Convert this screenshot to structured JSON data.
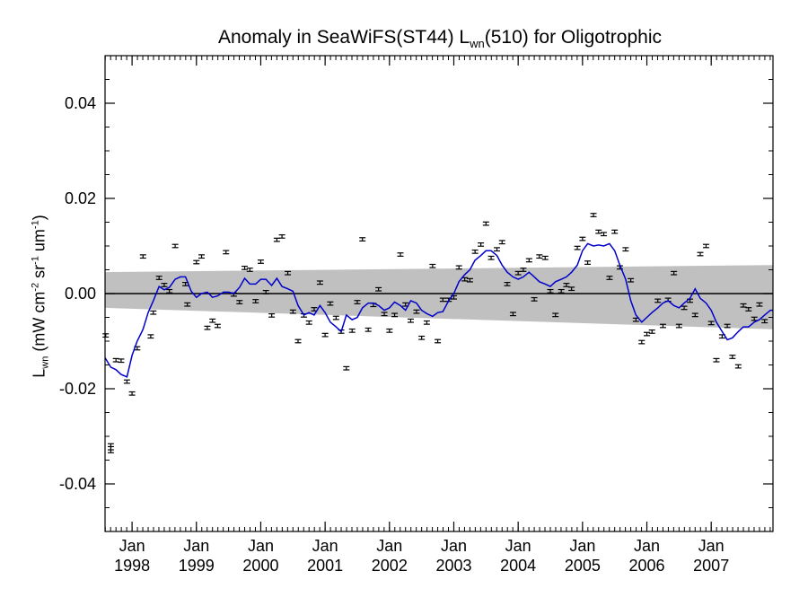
{
  "chart_data": {
    "type": "scatter",
    "title": {
      "prefix": "Anomaly in SeaWiFS(ST44) L",
      "sub": "wn",
      "suffix": "(510) for Oligotrophic"
    },
    "ylabel": {
      "main": "L",
      "main_sub": "wn",
      "unit_open": " (mW cm",
      "exp1": "-2",
      "mid1": " sr",
      "exp2": "-1",
      "mid2": " um",
      "exp3": "-1",
      "unit_close": ")"
    },
    "xlim": [
      1997.58,
      2007.96
    ],
    "ylim": [
      -0.05,
      0.05
    ],
    "y_ticks": [
      {
        "value": 0.04,
        "label": "0.04"
      },
      {
        "value": 0.02,
        "label": "0.02"
      },
      {
        "value": 0.0,
        "label": "0.00"
      },
      {
        "value": -0.02,
        "label": "-0.02"
      },
      {
        "value": -0.04,
        "label": "-0.04"
      }
    ],
    "x_ticks": [
      {
        "value": 1998.0,
        "month": "Jan",
        "year": "1998"
      },
      {
        "value": 1999.0,
        "month": "Jan",
        "year": "1999"
      },
      {
        "value": 2000.0,
        "month": "Jan",
        "year": "2000"
      },
      {
        "value": 2001.0,
        "month": "Jan",
        "year": "2001"
      },
      {
        "value": 2002.0,
        "month": "Jan",
        "year": "2002"
      },
      {
        "value": 2003.0,
        "month": "Jan",
        "year": "2003"
      },
      {
        "value": 2004.0,
        "month": "Jan",
        "year": "2004"
      },
      {
        "value": 2005.0,
        "month": "Jan",
        "year": "2005"
      },
      {
        "value": 2006.0,
        "month": "Jan",
        "year": "2006"
      },
      {
        "value": 2007.0,
        "month": "Jan",
        "year": "2007"
      }
    ],
    "band": {
      "x": [
        1997.58,
        2007.96
      ],
      "upper": [
        0.0045,
        0.006
      ],
      "lower": [
        -0.003,
        -0.0075
      ]
    },
    "zero_line": 0.0,
    "colors": {
      "points": "#000000",
      "smooth": "#0000cc",
      "band": "#c0c0c0",
      "zero": "#000000"
    },
    "points": [
      {
        "x": 1997.59,
        "y": -0.0088
      },
      {
        "x": 1997.67,
        "y": -0.0325
      },
      {
        "x": 1997.75,
        "y": -0.014
      },
      {
        "x": 1997.83,
        "y": -0.0141
      },
      {
        "x": 1997.92,
        "y": -0.0185
      },
      {
        "x": 1998.0,
        "y": -0.021
      },
      {
        "x": 1998.08,
        "y": -0.0115
      },
      {
        "x": 1998.17,
        "y": 0.0078
      },
      {
        "x": 1998.29,
        "y": -0.009
      },
      {
        "x": 1998.33,
        "y": -0.004
      },
      {
        "x": 1998.42,
        "y": 0.0033
      },
      {
        "x": 1998.5,
        "y": 0.0018
      },
      {
        "x": 1998.58,
        "y": 0.0005
      },
      {
        "x": 1998.67,
        "y": 0.01
      },
      {
        "x": 1998.83,
        "y": 0.002
      },
      {
        "x": 1998.86,
        "y": -0.0023
      },
      {
        "x": 1999.0,
        "y": 0.0066
      },
      {
        "x": 1999.08,
        "y": 0.0078
      },
      {
        "x": 1999.17,
        "y": -0.0072
      },
      {
        "x": 1999.25,
        "y": -0.0057
      },
      {
        "x": 1999.33,
        "y": -0.0068
      },
      {
        "x": 1999.46,
        "y": 0.0087
      },
      {
        "x": 1999.58,
        "y": -0.0002
      },
      {
        "x": 1999.67,
        "y": -0.0018
      },
      {
        "x": 1999.75,
        "y": 0.0054
      },
      {
        "x": 1999.83,
        "y": 0.005
      },
      {
        "x": 1999.92,
        "y": -0.0016
      },
      {
        "x": 2000.0,
        "y": 0.0067
      },
      {
        "x": 2000.08,
        "y": 0.0003
      },
      {
        "x": 2000.17,
        "y": -0.0046
      },
      {
        "x": 2000.25,
        "y": 0.0113
      },
      {
        "x": 2000.33,
        "y": 0.012
      },
      {
        "x": 2000.42,
        "y": 0.0043
      },
      {
        "x": 2000.5,
        "y": -0.0038
      },
      {
        "x": 2000.58,
        "y": -0.01
      },
      {
        "x": 2000.67,
        "y": -0.0046
      },
      {
        "x": 2000.75,
        "y": -0.0061
      },
      {
        "x": 2000.83,
        "y": -0.0033
      },
      {
        "x": 2000.92,
        "y": 0.0023
      },
      {
        "x": 2001.0,
        "y": -0.0087
      },
      {
        "x": 2001.08,
        "y": -0.0021
      },
      {
        "x": 2001.17,
        "y": -0.0051
      },
      {
        "x": 2001.25,
        "y": -0.008
      },
      {
        "x": 2001.33,
        "y": -0.0157
      },
      {
        "x": 2001.42,
        "y": -0.0078
      },
      {
        "x": 2001.5,
        "y": -0.0018
      },
      {
        "x": 2001.58,
        "y": 0.0114
      },
      {
        "x": 2001.67,
        "y": -0.0076
      },
      {
        "x": 2001.75,
        "y": -0.0024
      },
      {
        "x": 2001.83,
        "y": 0.0009
      },
      {
        "x": 2001.92,
        "y": -0.0043
      },
      {
        "x": 2002.0,
        "y": -0.0078
      },
      {
        "x": 2002.08,
        "y": -0.0045
      },
      {
        "x": 2002.17,
        "y": 0.0082
      },
      {
        "x": 2002.25,
        "y": -0.0023
      },
      {
        "x": 2002.33,
        "y": -0.0057
      },
      {
        "x": 2002.42,
        "y": -0.0038
      },
      {
        "x": 2002.5,
        "y": -0.0093
      },
      {
        "x": 2002.58,
        "y": -0.0061
      },
      {
        "x": 2002.67,
        "y": 0.0058
      },
      {
        "x": 2002.75,
        "y": -0.01
      },
      {
        "x": 2002.83,
        "y": -0.0013
      },
      {
        "x": 2002.92,
        "y": -0.0013
      },
      {
        "x": 2003.0,
        "y": -0.0008
      },
      {
        "x": 2003.08,
        "y": 0.0055
      },
      {
        "x": 2003.17,
        "y": 0.003
      },
      {
        "x": 2003.25,
        "y": 0.0028
      },
      {
        "x": 2003.33,
        "y": 0.0088
      },
      {
        "x": 2003.42,
        "y": 0.0103
      },
      {
        "x": 2003.5,
        "y": 0.0147
      },
      {
        "x": 2003.58,
        "y": 0.0075
      },
      {
        "x": 2003.67,
        "y": 0.0093
      },
      {
        "x": 2003.75,
        "y": 0.0108
      },
      {
        "x": 2003.83,
        "y": 0.002
      },
      {
        "x": 2003.92,
        "y": -0.0043
      },
      {
        "x": 2004.0,
        "y": 0.0043
      },
      {
        "x": 2004.08,
        "y": 0.005
      },
      {
        "x": 2004.17,
        "y": 0.007
      },
      {
        "x": 2004.25,
        "y": -0.0012
      },
      {
        "x": 2004.33,
        "y": 0.0078
      },
      {
        "x": 2004.42,
        "y": 0.0075
      },
      {
        "x": 2004.5,
        "y": 0.0005
      },
      {
        "x": 2004.58,
        "y": -0.0045
      },
      {
        "x": 2004.67,
        "y": 0.0005
      },
      {
        "x": 2004.75,
        "y": 0.0018
      },
      {
        "x": 2004.83,
        "y": 0.001
      },
      {
        "x": 2004.92,
        "y": 0.0096
      },
      {
        "x": 2005.0,
        "y": 0.0115
      },
      {
        "x": 2005.08,
        "y": 0.0065
      },
      {
        "x": 2005.17,
        "y": 0.0165
      },
      {
        "x": 2005.25,
        "y": 0.013
      },
      {
        "x": 2005.33,
        "y": 0.0125
      },
      {
        "x": 2005.42,
        "y": 0.0033
      },
      {
        "x": 2005.5,
        "y": 0.013
      },
      {
        "x": 2005.58,
        "y": 0.0055
      },
      {
        "x": 2005.67,
        "y": 0.0093
      },
      {
        "x": 2005.75,
        "y": 0.0028
      },
      {
        "x": 2005.83,
        "y": -0.0055
      },
      {
        "x": 2005.92,
        "y": -0.0102
      },
      {
        "x": 2006.0,
        "y": -0.0085
      },
      {
        "x": 2006.08,
        "y": -0.008
      },
      {
        "x": 2006.17,
        "y": -0.0015
      },
      {
        "x": 2006.25,
        "y": -0.0068
      },
      {
        "x": 2006.33,
        "y": -0.0013
      },
      {
        "x": 2006.42,
        "y": 0.0043
      },
      {
        "x": 2006.5,
        "y": -0.0068
      },
      {
        "x": 2006.58,
        "y": -0.003
      },
      {
        "x": 2006.67,
        "y": -0.0015
      },
      {
        "x": 2006.75,
        "y": -0.0045
      },
      {
        "x": 2006.83,
        "y": 0.0083
      },
      {
        "x": 2006.92,
        "y": 0.01
      },
      {
        "x": 2007.0,
        "y": -0.0062
      },
      {
        "x": 2007.08,
        "y": -0.014
      },
      {
        "x": 2007.17,
        "y": -0.009
      },
      {
        "x": 2007.25,
        "y": -0.0068
      },
      {
        "x": 2007.33,
        "y": -0.0133
      },
      {
        "x": 2007.42,
        "y": -0.0153
      },
      {
        "x": 2007.5,
        "y": -0.0025
      },
      {
        "x": 2007.58,
        "y": -0.0033
      },
      {
        "x": 2007.67,
        "y": -0.0053
      },
      {
        "x": 2007.75,
        "y": -0.0023
      },
      {
        "x": 2007.83,
        "y": -0.0058
      }
    ],
    "smooth": {
      "x": [
        1997.58,
        1997.67,
        1997.75,
        1997.83,
        1997.92,
        1998.0,
        1998.08,
        1998.17,
        1998.25,
        1998.33,
        1998.42,
        1998.5,
        1998.58,
        1998.67,
        1998.75,
        1998.83,
        1998.92,
        1999.0,
        1999.08,
        1999.17,
        1999.25,
        1999.33,
        1999.42,
        1999.5,
        1999.58,
        1999.67,
        1999.75,
        1999.83,
        1999.92,
        2000.0,
        2000.08,
        2000.17,
        2000.25,
        2000.33,
        2000.42,
        2000.5,
        2000.58,
        2000.67,
        2000.75,
        2000.83,
        2000.92,
        2001.0,
        2001.08,
        2001.17,
        2001.25,
        2001.33,
        2001.42,
        2001.5,
        2001.58,
        2001.67,
        2001.75,
        2001.83,
        2001.92,
        2002.0,
        2002.08,
        2002.17,
        2002.25,
        2002.33,
        2002.42,
        2002.5,
        2002.58,
        2002.67,
        2002.75,
        2002.83,
        2002.92,
        2003.0,
        2003.08,
        2003.17,
        2003.25,
        2003.33,
        2003.42,
        2003.5,
        2003.58,
        2003.67,
        2003.75,
        2003.83,
        2003.92,
        2004.0,
        2004.08,
        2004.17,
        2004.25,
        2004.33,
        2004.42,
        2004.5,
        2004.58,
        2004.67,
        2004.75,
        2004.83,
        2004.92,
        2005.0,
        2005.08,
        2005.17,
        2005.25,
        2005.33,
        2005.42,
        2005.5,
        2005.58,
        2005.67,
        2005.75,
        2005.83,
        2005.92,
        2006.0,
        2006.08,
        2006.17,
        2006.25,
        2006.33,
        2006.42,
        2006.5,
        2006.58,
        2006.67,
        2006.75,
        2006.83,
        2006.92,
        2007.0,
        2007.08,
        2007.17,
        2007.25,
        2007.33,
        2007.42,
        2007.5,
        2007.58,
        2007.67,
        2007.75,
        2007.83,
        2007.92,
        2007.96
      ],
      "y": [
        -0.0135,
        -0.0155,
        -0.016,
        -0.017,
        -0.0175,
        -0.013,
        -0.01,
        -0.0075,
        -0.004,
        -0.0015,
        0.0015,
        0.0008,
        0.0013,
        0.003,
        0.0035,
        0.0035,
        0.0005,
        -0.0008,
        0.0,
        0.0003,
        -0.0008,
        -0.0005,
        0.0003,
        0.0003,
        0.0,
        0.0013,
        0.0032,
        0.002,
        0.002,
        0.003,
        0.003,
        0.0017,
        0.0032,
        0.0015,
        0.001,
        0.0005,
        -0.0025,
        -0.0045,
        -0.004,
        -0.0045,
        -0.0025,
        -0.004,
        -0.006,
        -0.007,
        -0.008,
        -0.0045,
        -0.0055,
        -0.005,
        -0.003,
        -0.002,
        -0.002,
        -0.0025,
        -0.0035,
        -0.003,
        -0.0018,
        -0.0025,
        -0.0035,
        -0.0015,
        -0.002,
        -0.0035,
        -0.0042,
        -0.0048,
        -0.004,
        -0.0038,
        -0.0015,
        0.0,
        0.0025,
        0.004,
        0.005,
        0.007,
        0.008,
        0.009,
        0.009,
        0.008,
        0.006,
        0.0045,
        0.0035,
        0.003,
        0.0035,
        0.0045,
        0.0035,
        0.0025,
        0.002,
        0.0015,
        0.0025,
        0.003,
        0.0035,
        0.0045,
        0.006,
        0.009,
        0.0105,
        0.01,
        0.0102,
        0.01,
        0.0105,
        0.009,
        0.006,
        0.003,
        -0.0015,
        -0.0045,
        -0.006,
        -0.005,
        -0.004,
        -0.003,
        -0.002,
        -0.0015,
        -0.0025,
        -0.003,
        -0.002,
        -0.001,
        0.001,
        -0.001,
        -0.002,
        -0.0035,
        -0.006,
        -0.008,
        -0.0097,
        -0.0093,
        -0.008,
        -0.007,
        -0.007,
        -0.006,
        -0.0055,
        -0.0045,
        -0.0035,
        -0.0035
      ]
    }
  }
}
